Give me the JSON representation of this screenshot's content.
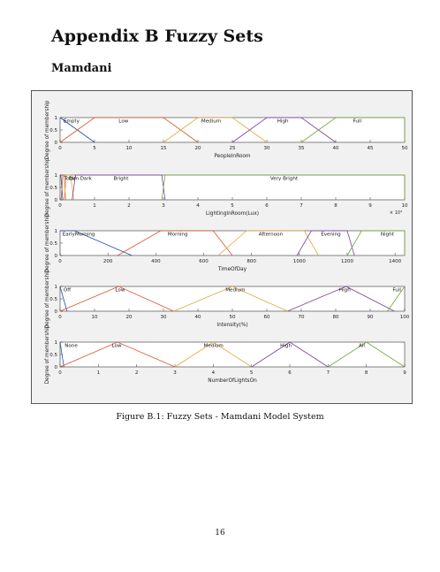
{
  "page": {
    "heading": "Appendix B Fuzzy Sets",
    "subheading": "Mamdani",
    "caption": "Figure B.1: Fuzzy Sets - Mamdani Model System",
    "page_number": "16"
  },
  "chart_data": [
    {
      "type": "line",
      "xlabel": "PeopleInRoom",
      "ylabel": "Degree of membership",
      "xlim": [
        0,
        50
      ],
      "ylim": [
        0,
        1
      ],
      "xticks": [
        0,
        5,
        10,
        15,
        20,
        25,
        30,
        35,
        40,
        45,
        50
      ],
      "yticks": [
        0,
        0.5,
        1
      ],
      "series": [
        {
          "name": "Empty",
          "color": "#1f4fa0",
          "points": [
            [
              0,
              1
            ],
            [
              0,
              1
            ],
            [
              5,
              0
            ]
          ]
        },
        {
          "name": "Low",
          "color": "#d8532a",
          "points": [
            [
              0,
              0
            ],
            [
              5,
              1
            ],
            [
              15,
              1
            ],
            [
              20,
              0
            ]
          ]
        },
        {
          "name": "Medium",
          "color": "#e0a83a",
          "points": [
            [
              15,
              0
            ],
            [
              20,
              1
            ],
            [
              25,
              1
            ],
            [
              30,
              0
            ]
          ]
        },
        {
          "name": "High",
          "color": "#7b3fa0",
          "points": [
            [
              25,
              0
            ],
            [
              30,
              1
            ],
            [
              35,
              1
            ],
            [
              40,
              0
            ]
          ]
        },
        {
          "name": "Full",
          "color": "#76a63a",
          "points": [
            [
              35,
              0
            ],
            [
              40,
              1
            ],
            [
              50,
              1
            ],
            [
              50,
              0
            ]
          ]
        }
      ],
      "labels": [
        {
          "text": "Empty",
          "x": 0.5
        },
        {
          "text": "Low",
          "x": 8.5
        },
        {
          "text": "Medium",
          "x": 20.5
        },
        {
          "text": "High",
          "x": 31.5
        },
        {
          "text": "Full",
          "x": 42.5
        }
      ]
    },
    {
      "type": "line",
      "xlabel": "LightingInRoom(Lux)",
      "ylabel": "Degree of membership",
      "xlim": [
        0,
        10
      ],
      "ylim": [
        0,
        1
      ],
      "xticks": [
        0,
        1,
        2,
        3,
        4,
        5,
        6,
        7,
        8,
        9,
        10
      ],
      "yticks": [
        0,
        0.5,
        1
      ],
      "exponent": "× 10⁴",
      "series": [
        {
          "name": "Total Dark",
          "color": "#1f4fa0",
          "points": [
            [
              0,
              1
            ],
            [
              0.02,
              1
            ],
            [
              0.08,
              0
            ]
          ]
        },
        {
          "name": "Dark",
          "color": "#d8532a",
          "points": [
            [
              0.03,
              0
            ],
            [
              0.08,
              1
            ],
            [
              0.12,
              1
            ],
            [
              0.16,
              0
            ]
          ]
        },
        {
          "name": "Dim",
          "color": "#e0a83a",
          "points": [
            [
              0.12,
              0
            ],
            [
              0.18,
              1
            ],
            [
              0.3,
              1
            ],
            [
              0.4,
              0
            ]
          ]
        },
        {
          "name": "Bright",
          "color": "#7b3fa0",
          "points": [
            [
              0.35,
              0
            ],
            [
              0.45,
              1
            ],
            [
              2.95,
              1
            ],
            [
              3.05,
              0
            ]
          ]
        },
        {
          "name": "Very Bright",
          "color": "#76a63a",
          "points": [
            [
              2.95,
              0
            ],
            [
              3.05,
              1
            ],
            [
              10,
              1
            ],
            [
              10,
              0
            ]
          ]
        }
      ],
      "labels": [
        {
          "text": "Total",
          "x": 0.12
        },
        {
          "text": "Dim",
          "x": 0.25
        },
        {
          "text": "Dark",
          "x": 0.58
        },
        {
          "text": "Bright",
          "x": 1.55
        },
        {
          "text": "Very Bright",
          "x": 6.1
        }
      ]
    },
    {
      "type": "line",
      "xlabel": "TimeOfDay",
      "ylabel": "Degree of membership",
      "xlim": [
        0,
        1440
      ],
      "ylim": [
        0,
        1
      ],
      "xticks": [
        0,
        200,
        400,
        600,
        800,
        1000,
        1200,
        1400
      ],
      "yticks": [
        0,
        0.5,
        1
      ],
      "series": [
        {
          "name": "EarlyMorning",
          "color": "#1f4fa0",
          "points": [
            [
              0,
              1
            ],
            [
              60,
              1
            ],
            [
              300,
              0
            ]
          ]
        },
        {
          "name": "Morning",
          "color": "#d8532a",
          "points": [
            [
              240,
              0
            ],
            [
              420,
              1
            ],
            [
              640,
              1
            ],
            [
              720,
              0
            ]
          ]
        },
        {
          "name": "Afternoon",
          "color": "#e0a83a",
          "points": [
            [
              660,
              0
            ],
            [
              780,
              1
            ],
            [
              1020,
              1
            ],
            [
              1080,
              0
            ]
          ]
        },
        {
          "name": "Evening",
          "color": "#7b3fa0",
          "points": [
            [
              990,
              0
            ],
            [
              1050,
              1
            ],
            [
              1200,
              1
            ],
            [
              1230,
              0
            ]
          ]
        },
        {
          "name": "Night",
          "color": "#76a63a",
          "points": [
            [
              1200,
              0
            ],
            [
              1260,
              1
            ],
            [
              1440,
              1
            ],
            [
              1440,
              0
            ]
          ]
        }
      ],
      "labels": [
        {
          "text": "EarlyMorning",
          "x": 10
        },
        {
          "text": "Morning",
          "x": 450
        },
        {
          "text": "Afternoon",
          "x": 830
        },
        {
          "text": "Evening",
          "x": 1090
        },
        {
          "text": "Night",
          "x": 1340
        }
      ]
    },
    {
      "type": "line",
      "xlabel": "Intensity(%)",
      "ylabel": "Degree of membership",
      "xlim": [
        0,
        100
      ],
      "ylim": [
        0,
        1
      ],
      "xticks": [
        0,
        10,
        20,
        30,
        40,
        50,
        60,
        70,
        80,
        90,
        100
      ],
      "yticks": [
        0,
        0.5,
        1
      ],
      "series": [
        {
          "name": "Off",
          "color": "#1f4fa0",
          "points": [
            [
              0,
              1
            ],
            [
              0,
              1
            ],
            [
              2,
              0
            ]
          ]
        },
        {
          "name": "Low",
          "color": "#d8532a",
          "points": [
            [
              0,
              0
            ],
            [
              17,
              1
            ],
            [
              33,
              0
            ]
          ]
        },
        {
          "name": "Medium",
          "color": "#e0a83a",
          "points": [
            [
              33,
              0
            ],
            [
              50,
              1
            ],
            [
              66,
              0
            ]
          ]
        },
        {
          "name": "High",
          "color": "#7b3fa0",
          "points": [
            [
              66,
              0
            ],
            [
              83,
              1
            ],
            [
              97,
              0
            ]
          ]
        },
        {
          "name": "Full",
          "color": "#76a63a",
          "points": [
            [
              95,
              0
            ],
            [
              100,
              1
            ]
          ]
        }
      ],
      "labels": [
        {
          "text": "Off",
          "x": 1
        },
        {
          "text": "Low",
          "x": 16
        },
        {
          "text": "Medium",
          "x": 48
        },
        {
          "text": "High",
          "x": 81
        },
        {
          "text": "Full",
          "x": 96.5
        }
      ]
    },
    {
      "type": "line",
      "xlabel": "NumberOfLightsOn",
      "ylabel": "Degree of membership",
      "xlim": [
        0,
        9
      ],
      "ylim": [
        0,
        1
      ],
      "xticks": [
        0,
        1,
        2,
        3,
        4,
        5,
        6,
        7,
        8,
        9
      ],
      "yticks": [
        0,
        0.5,
        1
      ],
      "series": [
        {
          "name": "None",
          "color": "#1f4fa0",
          "points": [
            [
              0,
              1
            ],
            [
              0,
              1
            ],
            [
              0.1,
              0
            ]
          ]
        },
        {
          "name": "Low",
          "color": "#d8532a",
          "points": [
            [
              0,
              0
            ],
            [
              1.5,
              1
            ],
            [
              3,
              0
            ]
          ]
        },
        {
          "name": "Medium",
          "color": "#e0a83a",
          "points": [
            [
              3,
              0
            ],
            [
              4,
              1
            ],
            [
              5,
              0
            ]
          ]
        },
        {
          "name": "High",
          "color": "#7b3fa0",
          "points": [
            [
              5,
              0
            ],
            [
              6,
              1
            ],
            [
              7,
              0
            ]
          ]
        },
        {
          "name": "All",
          "color": "#76a63a",
          "points": [
            [
              7,
              0
            ],
            [
              8,
              1
            ],
            [
              9,
              0
            ]
          ]
        }
      ],
      "labels": [
        {
          "text": "None",
          "x": 0.12
        },
        {
          "text": "Low",
          "x": 1.35
        },
        {
          "text": "Medium",
          "x": 3.75
        },
        {
          "text": "High",
          "x": 5.75
        },
        {
          "text": "All",
          "x": 7.8
        }
      ]
    }
  ]
}
